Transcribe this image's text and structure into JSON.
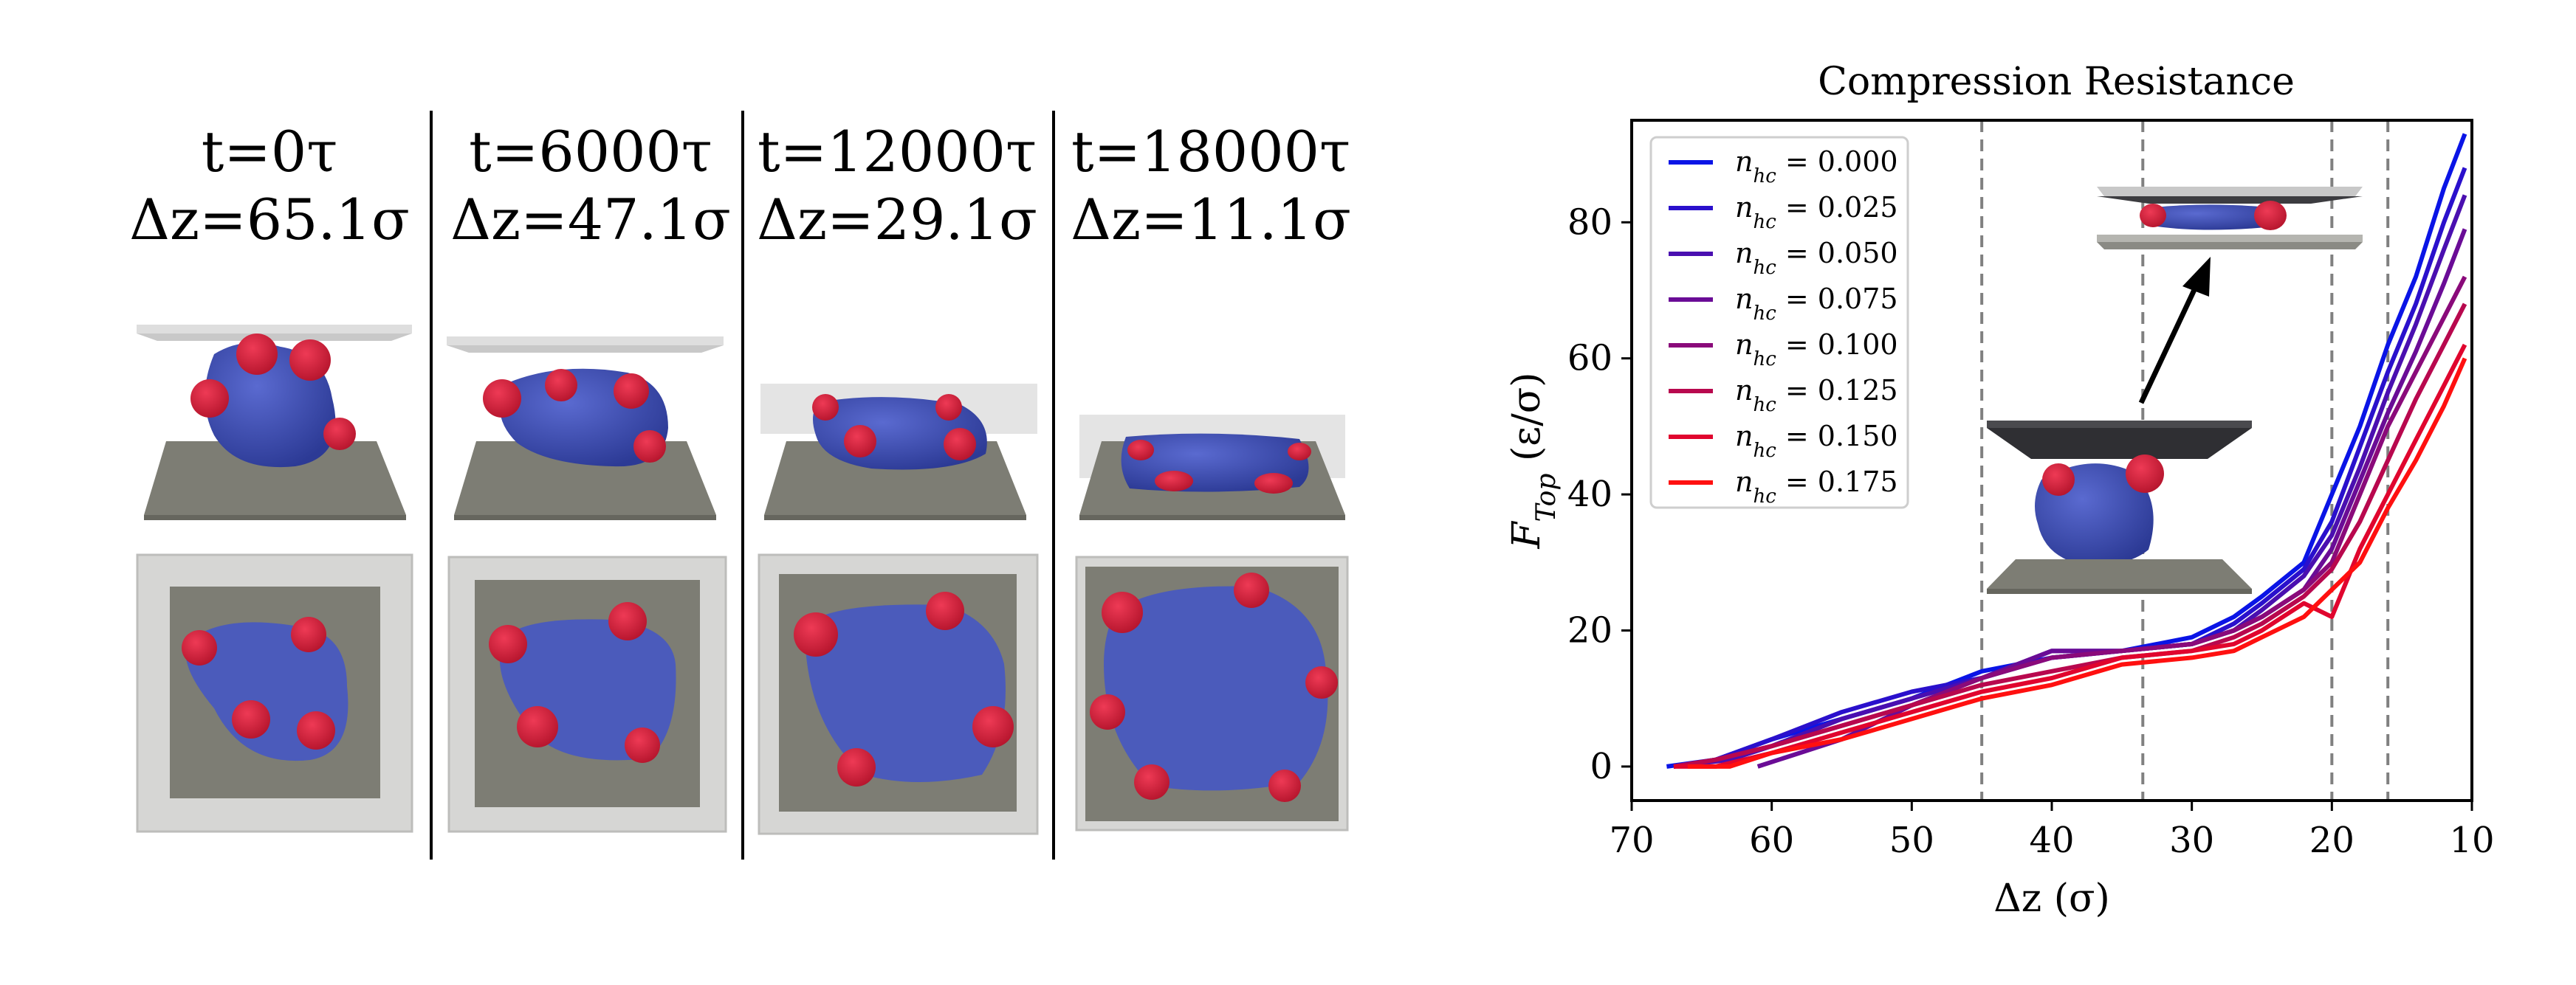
{
  "snapshots": [
    {
      "time": "t=0τ",
      "dz": "Δz=65.1σ"
    },
    {
      "time": "t=6000τ",
      "dz": "Δz=47.1σ"
    },
    {
      "time": "t=12000τ",
      "dz": "Δz=29.1σ"
    },
    {
      "time": "t=18000τ",
      "dz": "Δz=11.1σ"
    }
  ],
  "colors": {
    "cell_blue": "#3f4fb0",
    "patch_red": "#d81f3a",
    "plate_dark": "#7a7a72",
    "plate_light": "#d9d9d9"
  },
  "chart_data": {
    "type": "line",
    "title": "Compression Resistance",
    "xlabel": "Δz (σ)",
    "ylabel": "F_Top (ε/σ)",
    "ylabel_main": "F",
    "ylabel_sub": "Top",
    "ylabel_rest": " (ε/σ)",
    "xlim": [
      70,
      10
    ],
    "ylim": [
      -5,
      95
    ],
    "xticks": [
      70,
      60,
      50,
      40,
      30,
      20,
      10
    ],
    "yticks": [
      0,
      20,
      40,
      60,
      80
    ],
    "vlines": [
      45,
      33.5,
      20,
      16
    ],
    "legend_location": "upper-left",
    "series": [
      {
        "name": "n_hc = 0.000",
        "label_main": "n",
        "label_sub": "hc",
        "label_rest": " = 0.000",
        "color": "#0a14e6",
        "x": [
          67.5,
          64,
          60,
          55,
          50,
          45,
          40,
          35,
          30,
          27,
          25,
          22,
          20,
          18,
          16,
          14,
          12,
          10.5
        ],
        "y": [
          0,
          1,
          4,
          7,
          10,
          14,
          16,
          17,
          19,
          22,
          25,
          30,
          40,
          50,
          62,
          72,
          85,
          93
        ]
      },
      {
        "name": "n_hc = 0.025",
        "label_main": "n",
        "label_sub": "hc",
        "label_rest": " = 0.025",
        "color": "#2a10cc",
        "x": [
          67,
          64,
          60,
          55,
          50,
          45,
          40,
          35,
          30,
          27,
          25,
          22,
          20,
          18,
          16,
          14,
          12,
          10.5
        ],
        "y": [
          0,
          1,
          4,
          8,
          11,
          13,
          16,
          17,
          18,
          21,
          24,
          29,
          36,
          47,
          58,
          68,
          80,
          88
        ]
      },
      {
        "name": "n_hc = 0.050",
        "label_main": "n",
        "label_sub": "hc",
        "label_rest": " = 0.050",
        "color": "#4a0fb0",
        "x": [
          67,
          63,
          60,
          55,
          50,
          45,
          40,
          35,
          30,
          27,
          25,
          22,
          20,
          18,
          16,
          14,
          12,
          10.5
        ],
        "y": [
          0,
          1,
          3,
          7,
          10,
          13,
          17,
          17,
          18,
          20,
          23,
          28,
          34,
          44,
          55,
          65,
          76,
          84
        ]
      },
      {
        "name": "n_hc = 0.075",
        "label_main": "n",
        "label_sub": "hc",
        "label_rest": " = 0.075",
        "color": "#6a0c96",
        "x": [
          61,
          58,
          55,
          50,
          45,
          40,
          35,
          30,
          27,
          25,
          22,
          20,
          18,
          16,
          14,
          12,
          10.5
        ],
        "y": [
          0,
          2,
          4,
          9,
          13,
          17,
          17,
          18,
          20,
          22,
          26,
          32,
          42,
          52,
          61,
          71,
          79
        ]
      },
      {
        "name": "n_hc = 0.100",
        "label_main": "n",
        "label_sub": "hc",
        "label_rest": " = 0.100",
        "color": "#8a0a7a",
        "x": [
          67,
          64,
          60,
          55,
          50,
          45,
          40,
          35,
          30,
          27,
          25,
          22,
          20,
          18,
          16,
          14,
          12,
          10.5
        ],
        "y": [
          0,
          1,
          3,
          6,
          9,
          13,
          16,
          17,
          18,
          20,
          22,
          26,
          30,
          40,
          50,
          58,
          66,
          72
        ]
      },
      {
        "name": "n_hc = 0.125",
        "label_main": "n",
        "label_sub": "hc",
        "label_rest": " = 0.125",
        "color": "#b8084e",
        "x": [
          67,
          64,
          60,
          55,
          50,
          45,
          40,
          35,
          30,
          27,
          25,
          22,
          20,
          18,
          16,
          14,
          12,
          10.5
        ],
        "y": [
          0,
          1,
          3,
          6,
          9,
          12,
          14,
          16,
          17,
          19,
          21,
          25,
          29,
          36,
          45,
          54,
          62,
          68
        ]
      },
      {
        "name": "n_hc = 0.150",
        "label_main": "n",
        "label_sub": "hc",
        "label_rest": " = 0.150",
        "color": "#e0052e",
        "x": [
          67,
          64,
          60,
          55,
          50,
          45,
          40,
          35,
          30,
          27,
          25,
          22,
          20,
          18,
          16,
          14,
          12,
          10.5
        ],
        "y": [
          0,
          0,
          2,
          5,
          8,
          11,
          13,
          16,
          17,
          18,
          20,
          24,
          22,
          32,
          40,
          48,
          56,
          62
        ]
      },
      {
        "name": "n_hc = 0.175",
        "label_main": "n",
        "label_sub": "hc",
        "label_rest": " = 0.175",
        "color": "#ff1010",
        "x": [
          66,
          63,
          60,
          55,
          50,
          45,
          40,
          35,
          30,
          27,
          25,
          22,
          20,
          18,
          16,
          14,
          12,
          10.5
        ],
        "y": [
          0,
          0,
          2,
          4,
          7,
          10,
          12,
          15,
          16,
          17,
          19,
          22,
          26,
          30,
          38,
          45,
          53,
          60
        ]
      }
    ]
  }
}
